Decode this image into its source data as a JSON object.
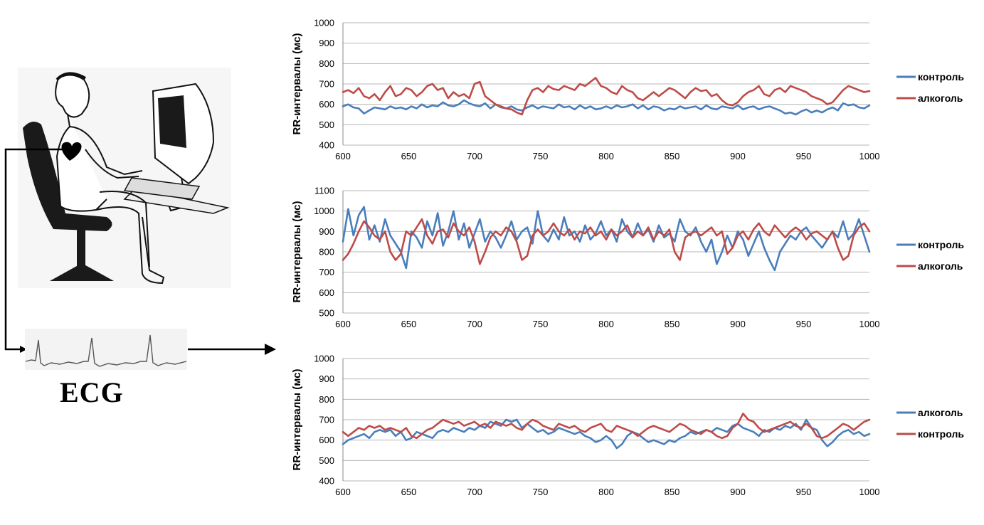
{
  "figure": {
    "ecg_label": "ECG"
  },
  "chart_data": [
    {
      "type": "line",
      "x": [
        600,
        604,
        608,
        612,
        616,
        620,
        624,
        628,
        632,
        636,
        640,
        644,
        648,
        652,
        656,
        660,
        664,
        668,
        672,
        676,
        680,
        684,
        688,
        692,
        696,
        700,
        704,
        708,
        712,
        716,
        720,
        724,
        728,
        732,
        736,
        740,
        744,
        748,
        752,
        756,
        760,
        764,
        768,
        772,
        776,
        780,
        784,
        788,
        792,
        796,
        800,
        804,
        808,
        812,
        816,
        820,
        824,
        828,
        832,
        836,
        840,
        844,
        848,
        852,
        856,
        860,
        864,
        868,
        872,
        876,
        880,
        884,
        888,
        892,
        896,
        900,
        904,
        908,
        912,
        916,
        920,
        924,
        928,
        932,
        936,
        940,
        944,
        948,
        952,
        956,
        960,
        964,
        968,
        972,
        976,
        980,
        984,
        988,
        992,
        996,
        1000
      ],
      "series": [
        {
          "name": "контроль",
          "color": "#4a7ebb",
          "values": [
            590,
            600,
            585,
            580,
            555,
            570,
            585,
            580,
            575,
            590,
            580,
            585,
            575,
            590,
            580,
            600,
            585,
            595,
            590,
            610,
            595,
            590,
            600,
            620,
            605,
            595,
            590,
            605,
            580,
            600,
            585,
            580,
            590,
            575,
            570,
            585,
            595,
            580,
            590,
            585,
            580,
            600,
            585,
            590,
            575,
            595,
            580,
            590,
            575,
            580,
            590,
            580,
            595,
            585,
            590,
            600,
            580,
            595,
            575,
            590,
            585,
            570,
            580,
            575,
            590,
            580,
            585,
            590,
            575,
            595,
            580,
            575,
            590,
            585,
            580,
            595,
            575,
            585,
            590,
            575,
            585,
            590,
            580,
            570,
            555,
            560,
            550,
            565,
            575,
            560,
            570,
            560,
            575,
            585,
            570,
            605,
            595,
            600,
            585,
            580,
            595
          ]
        },
        {
          "name": "алкоголь",
          "color": "#be4b48",
          "values": [
            660,
            670,
            655,
            680,
            640,
            630,
            650,
            620,
            660,
            690,
            640,
            650,
            680,
            670,
            640,
            660,
            690,
            700,
            670,
            680,
            630,
            660,
            640,
            650,
            630,
            700,
            710,
            640,
            620,
            600,
            590,
            580,
            575,
            560,
            550,
            620,
            670,
            680,
            660,
            690,
            675,
            670,
            690,
            680,
            670,
            700,
            690,
            710,
            730,
            690,
            680,
            660,
            650,
            690,
            670,
            660,
            630,
            620,
            640,
            660,
            640,
            660,
            680,
            670,
            650,
            630,
            660,
            680,
            665,
            670,
            640,
            650,
            620,
            600,
            595,
            610,
            640,
            660,
            670,
            690,
            650,
            640,
            670,
            680,
            660,
            690,
            680,
            670,
            660,
            640,
            630,
            620,
            600,
            610,
            640,
            670,
            690,
            680,
            670,
            660,
            665
          ]
        }
      ],
      "yticks": [
        "1000",
        "900",
        "800",
        "700",
        "600",
        "500",
        "400"
      ],
      "xticks": [
        "600",
        "650",
        "700",
        "750",
        "800",
        "850",
        "900",
        "950",
        "1000"
      ],
      "ylim": [
        400,
        1000
      ],
      "xlim": [
        600,
        1000
      ],
      "ylabel": "RR-интервалы (мс)",
      "legend": [
        "контроль",
        "алкоголь"
      ],
      "legend_position": "right",
      "grid": true
    },
    {
      "type": "line",
      "x": [
        600,
        604,
        608,
        612,
        616,
        620,
        624,
        628,
        632,
        636,
        640,
        644,
        648,
        652,
        656,
        660,
        664,
        668,
        672,
        676,
        680,
        684,
        688,
        692,
        696,
        700,
        704,
        708,
        712,
        716,
        720,
        724,
        728,
        732,
        736,
        740,
        744,
        748,
        752,
        756,
        760,
        764,
        768,
        772,
        776,
        780,
        784,
        788,
        792,
        796,
        800,
        804,
        808,
        812,
        816,
        820,
        824,
        828,
        832,
        836,
        840,
        844,
        848,
        852,
        856,
        860,
        864,
        868,
        872,
        876,
        880,
        884,
        888,
        892,
        896,
        900,
        904,
        908,
        912,
        916,
        920,
        924,
        928,
        932,
        936,
        940,
        944,
        948,
        952,
        956,
        960,
        964,
        968,
        972,
        976,
        980,
        984,
        988,
        992,
        996,
        1000
      ],
      "series": [
        {
          "name": "контроль",
          "color": "#4a7ebb",
          "values": [
            850,
            1010,
            880,
            980,
            1020,
            860,
            930,
            850,
            960,
            880,
            840,
            800,
            720,
            900,
            870,
            820,
            950,
            880,
            990,
            830,
            900,
            1000,
            860,
            940,
            820,
            890,
            960,
            850,
            900,
            870,
            820,
            880,
            950,
            860,
            900,
            920,
            840,
            1000,
            880,
            850,
            910,
            860,
            970,
            880,
            900,
            850,
            930,
            860,
            890,
            950,
            880,
            910,
            850,
            960,
            900,
            870,
            940,
            880,
            910,
            850,
            930,
            870,
            890,
            850,
            960,
            900,
            880,
            920,
            850,
            800,
            860,
            740,
            800,
            880,
            820,
            900,
            860,
            780,
            840,
            900,
            820,
            760,
            710,
            800,
            840,
            880,
            860,
            900,
            920,
            880,
            850,
            820,
            860,
            900,
            870,
            950,
            860,
            890,
            960,
            880,
            800
          ]
        },
        {
          "name": "алкоголь",
          "color": "#be4b48",
          "values": [
            760,
            790,
            840,
            900,
            950,
            920,
            880,
            860,
            900,
            800,
            760,
            790,
            900,
            880,
            920,
            960,
            880,
            840,
            900,
            910,
            870,
            940,
            900,
            880,
            920,
            850,
            740,
            800,
            870,
            900,
            880,
            920,
            900,
            850,
            760,
            780,
            880,
            910,
            880,
            900,
            940,
            900,
            880,
            910,
            860,
            900,
            890,
            920,
            880,
            900,
            860,
            910,
            880,
            900,
            930,
            870,
            900,
            880,
            920,
            860,
            900,
            880,
            910,
            800,
            760,
            870,
            890,
            900,
            880,
            900,
            920,
            880,
            900,
            790,
            820,
            880,
            900,
            860,
            910,
            940,
            900,
            880,
            930,
            900,
            870,
            900,
            920,
            900,
            860,
            890,
            900,
            880,
            860,
            900,
            820,
            760,
            780,
            880,
            920,
            940,
            900
          ]
        }
      ],
      "yticks": [
        "1100",
        "1000",
        "900",
        "800",
        "700",
        "600",
        "500"
      ],
      "xticks": [
        "600",
        "650",
        "700",
        "750",
        "800",
        "850",
        "900",
        "950",
        "1000"
      ],
      "ylim": [
        500,
        1100
      ],
      "xlim": [
        600,
        1000
      ],
      "ylabel": "RR-интервалы (мс)",
      "legend": [
        "контроль",
        "алкоголь"
      ],
      "legend_position": "right",
      "grid": true
    },
    {
      "type": "line",
      "x": [
        600,
        604,
        608,
        612,
        616,
        620,
        624,
        628,
        632,
        636,
        640,
        644,
        648,
        652,
        656,
        660,
        664,
        668,
        672,
        676,
        680,
        684,
        688,
        692,
        696,
        700,
        704,
        708,
        712,
        716,
        720,
        724,
        728,
        732,
        736,
        740,
        744,
        748,
        752,
        756,
        760,
        764,
        768,
        772,
        776,
        780,
        784,
        788,
        792,
        796,
        800,
        804,
        808,
        812,
        816,
        820,
        824,
        828,
        832,
        836,
        840,
        844,
        848,
        852,
        856,
        860,
        864,
        868,
        872,
        876,
        880,
        884,
        888,
        892,
        896,
        900,
        904,
        908,
        912,
        916,
        920,
        924,
        928,
        932,
        936,
        940,
        944,
        948,
        952,
        956,
        960,
        964,
        968,
        972,
        976,
        980,
        984,
        988,
        992,
        996,
        1000
      ],
      "series": [
        {
          "name": "алкоголь",
          "color": "#4a7ebb",
          "values": [
            580,
            600,
            610,
            620,
            630,
            610,
            640,
            650,
            640,
            650,
            620,
            640,
            600,
            610,
            640,
            630,
            620,
            610,
            640,
            650,
            640,
            660,
            650,
            640,
            660,
            650,
            670,
            660,
            690,
            680,
            670,
            700,
            690,
            700,
            660,
            680,
            660,
            640,
            650,
            630,
            640,
            660,
            650,
            640,
            630,
            640,
            620,
            610,
            590,
            600,
            620,
            600,
            560,
            580,
            620,
            640,
            630,
            610,
            590,
            600,
            590,
            580,
            600,
            590,
            610,
            620,
            640,
            630,
            640,
            650,
            640,
            660,
            650,
            640,
            670,
            680,
            660,
            650,
            640,
            620,
            650,
            640,
            660,
            650,
            670,
            660,
            680,
            650,
            700,
            660,
            650,
            600,
            570,
            590,
            620,
            640,
            650,
            630,
            640,
            620,
            630
          ]
        },
        {
          "name": "контроль",
          "color": "#be4b48",
          "values": [
            640,
            620,
            640,
            660,
            650,
            670,
            660,
            670,
            650,
            660,
            650,
            640,
            660,
            620,
            610,
            630,
            650,
            660,
            680,
            700,
            690,
            680,
            690,
            670,
            680,
            690,
            670,
            680,
            660,
            690,
            680,
            670,
            680,
            660,
            650,
            680,
            700,
            690,
            670,
            660,
            650,
            680,
            670,
            660,
            670,
            650,
            640,
            660,
            670,
            680,
            650,
            640,
            670,
            660,
            650,
            640,
            620,
            640,
            660,
            670,
            660,
            650,
            640,
            660,
            680,
            670,
            650,
            640,
            630,
            650,
            640,
            620,
            610,
            620,
            660,
            680,
            730,
            700,
            690,
            660,
            640,
            650,
            660,
            670,
            680,
            690,
            670,
            660,
            680,
            660,
            620,
            610,
            620,
            640,
            660,
            680,
            670,
            650,
            670,
            690,
            700
          ]
        }
      ],
      "yticks": [
        "1000",
        "900",
        "800",
        "700",
        "600",
        "500",
        "400"
      ],
      "xticks": [
        "600",
        "650",
        "700",
        "750",
        "800",
        "850",
        "900",
        "950",
        "1000"
      ],
      "ylim": [
        400,
        1000
      ],
      "xlim": [
        600,
        1000
      ],
      "ylabel": "RR-интервалы (мс)",
      "legend": [
        "алкоголь",
        "контроль"
      ],
      "legend_position": "right",
      "grid": true
    }
  ]
}
